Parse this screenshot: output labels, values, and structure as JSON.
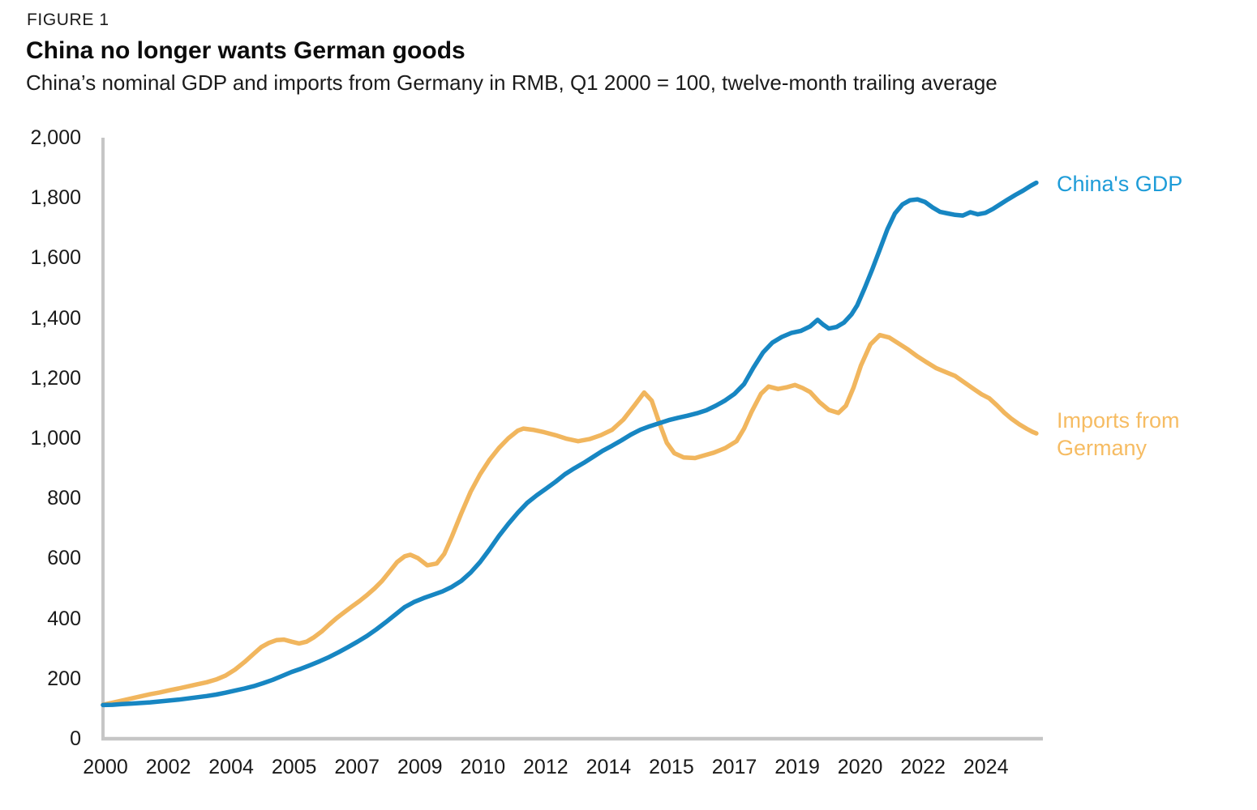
{
  "header": {
    "figure_label": "FIGURE 1",
    "title": "China no longer wants German goods",
    "subtitle": "China’s nominal GDP and imports from Germany in RMB, Q1 2000 = 100, twelve-month trailing average"
  },
  "chart_data": {
    "type": "line",
    "title": "China no longer wants German goods",
    "subtitle": "China’s nominal GDP and imports from Germany in RMB, Q1 2000 = 100, twelve-month trailing average",
    "xlabel": "",
    "ylabel": "",
    "ylim": [
      0,
      2000
    ],
    "grid": false,
    "legend_position": "inline-right",
    "axis_color": "#c6c6c6",
    "tick_text_color": "#1a1a1a",
    "y_axis": {
      "ticks": [
        "0",
        "200",
        "400",
        "600",
        "800",
        "1,000",
        "1,200",
        "1,400",
        "1,600",
        "1,800",
        "2,000"
      ]
    },
    "x_axis": {
      "ticks": [
        "2000",
        "2002",
        "2004",
        "2005",
        "2007",
        "2009",
        "2010",
        "2012",
        "2014",
        "2015",
        "2017",
        "2019",
        "2020",
        "2022",
        "2024"
      ]
    },
    "x_unit": "year",
    "series": [
      {
        "name": "China's GDP",
        "color": "#1786c2",
        "label_color": "#1e9cd8",
        "points": [
          [
            2000.0,
            112
          ],
          [
            2000.25,
            113
          ],
          [
            2000.5,
            115
          ],
          [
            2000.75,
            117
          ],
          [
            2001.0,
            119
          ],
          [
            2001.25,
            121
          ],
          [
            2001.5,
            124
          ],
          [
            2001.75,
            127
          ],
          [
            2002.0,
            130
          ],
          [
            2002.25,
            134
          ],
          [
            2002.5,
            138
          ],
          [
            2002.75,
            142
          ],
          [
            2003.0,
            147
          ],
          [
            2003.25,
            153
          ],
          [
            2003.5,
            160
          ],
          [
            2003.75,
            167
          ],
          [
            2004.0,
            175
          ],
          [
            2004.25,
            185
          ],
          [
            2004.5,
            196
          ],
          [
            2004.75,
            209
          ],
          [
            2005.0,
            222
          ],
          [
            2005.25,
            233
          ],
          [
            2005.5,
            245
          ],
          [
            2005.75,
            258
          ],
          [
            2006.0,
            272
          ],
          [
            2006.25,
            288
          ],
          [
            2006.5,
            305
          ],
          [
            2006.75,
            323
          ],
          [
            2007.0,
            342
          ],
          [
            2007.25,
            364
          ],
          [
            2007.5,
            388
          ],
          [
            2007.75,
            413
          ],
          [
            2008.0,
            438
          ],
          [
            2008.25,
            455
          ],
          [
            2008.5,
            468
          ],
          [
            2008.75,
            479
          ],
          [
            2009.0,
            490
          ],
          [
            2009.25,
            505
          ],
          [
            2009.5,
            525
          ],
          [
            2009.75,
            553
          ],
          [
            2010.0,
            588
          ],
          [
            2010.25,
            630
          ],
          [
            2010.5,
            675
          ],
          [
            2010.75,
            715
          ],
          [
            2011.0,
            752
          ],
          [
            2011.25,
            785
          ],
          [
            2011.5,
            810
          ],
          [
            2011.75,
            832
          ],
          [
            2012.0,
            855
          ],
          [
            2012.25,
            880
          ],
          [
            2012.5,
            900
          ],
          [
            2012.75,
            918
          ],
          [
            2013.0,
            938
          ],
          [
            2013.25,
            958
          ],
          [
            2013.5,
            975
          ],
          [
            2013.75,
            993
          ],
          [
            2014.0,
            1012
          ],
          [
            2014.25,
            1028
          ],
          [
            2014.5,
            1040
          ],
          [
            2014.75,
            1050
          ],
          [
            2015.0,
            1060
          ],
          [
            2015.25,
            1068
          ],
          [
            2015.5,
            1075
          ],
          [
            2015.75,
            1083
          ],
          [
            2016.0,
            1093
          ],
          [
            2016.25,
            1108
          ],
          [
            2016.5,
            1126
          ],
          [
            2016.75,
            1148
          ],
          [
            2017.0,
            1180
          ],
          [
            2017.25,
            1235
          ],
          [
            2017.5,
            1285
          ],
          [
            2017.75,
            1318
          ],
          [
            2018.0,
            1337
          ],
          [
            2018.25,
            1350
          ],
          [
            2018.5,
            1357
          ],
          [
            2018.75,
            1372
          ],
          [
            2018.95,
            1394
          ],
          [
            2019.1,
            1378
          ],
          [
            2019.25,
            1365
          ],
          [
            2019.45,
            1370
          ],
          [
            2019.65,
            1385
          ],
          [
            2019.85,
            1412
          ],
          [
            2020.0,
            1442
          ],
          [
            2020.2,
            1500
          ],
          [
            2020.4,
            1562
          ],
          [
            2020.6,
            1628
          ],
          [
            2020.8,
            1695
          ],
          [
            2021.0,
            1748
          ],
          [
            2021.2,
            1778
          ],
          [
            2021.4,
            1792
          ],
          [
            2021.6,
            1795
          ],
          [
            2021.8,
            1786
          ],
          [
            2022.0,
            1768
          ],
          [
            2022.2,
            1753
          ],
          [
            2022.4,
            1748
          ],
          [
            2022.6,
            1743
          ],
          [
            2022.8,
            1741
          ],
          [
            2023.0,
            1752
          ],
          [
            2023.2,
            1745
          ],
          [
            2023.4,
            1750
          ],
          [
            2023.6,
            1763
          ],
          [
            2023.8,
            1779
          ],
          [
            2024.0,
            1795
          ],
          [
            2024.2,
            1810
          ],
          [
            2024.4,
            1824
          ],
          [
            2024.6,
            1840
          ],
          [
            2024.75,
            1850
          ]
        ]
      },
      {
        "name": "Imports from Germany",
        "color": "#f1b65e",
        "label_color": "#f6bc63",
        "points": [
          [
            2000.0,
            113
          ],
          [
            2000.25,
            120
          ],
          [
            2000.5,
            127
          ],
          [
            2000.75,
            134
          ],
          [
            2001.0,
            141
          ],
          [
            2001.25,
            148
          ],
          [
            2001.5,
            154
          ],
          [
            2001.75,
            161
          ],
          [
            2002.0,
            167
          ],
          [
            2002.25,
            174
          ],
          [
            2002.5,
            181
          ],
          [
            2002.75,
            188
          ],
          [
            2003.0,
            197
          ],
          [
            2003.25,
            210
          ],
          [
            2003.5,
            230
          ],
          [
            2003.75,
            255
          ],
          [
            2004.0,
            283
          ],
          [
            2004.2,
            305
          ],
          [
            2004.4,
            319
          ],
          [
            2004.6,
            328
          ],
          [
            2004.8,
            330
          ],
          [
            2005.0,
            323
          ],
          [
            2005.2,
            317
          ],
          [
            2005.4,
            323
          ],
          [
            2005.6,
            338
          ],
          [
            2005.8,
            357
          ],
          [
            2006.0,
            380
          ],
          [
            2006.2,
            402
          ],
          [
            2006.4,
            421
          ],
          [
            2006.6,
            440
          ],
          [
            2006.8,
            458
          ],
          [
            2007.0,
            478
          ],
          [
            2007.2,
            500
          ],
          [
            2007.4,
            525
          ],
          [
            2007.6,
            556
          ],
          [
            2007.8,
            588
          ],
          [
            2008.0,
            607
          ],
          [
            2008.15,
            612
          ],
          [
            2008.35,
            601
          ],
          [
            2008.6,
            577
          ],
          [
            2008.85,
            583
          ],
          [
            2009.05,
            615
          ],
          [
            2009.25,
            672
          ],
          [
            2009.5,
            750
          ],
          [
            2009.75,
            822
          ],
          [
            2010.0,
            880
          ],
          [
            2010.25,
            928
          ],
          [
            2010.5,
            968
          ],
          [
            2010.75,
            1000
          ],
          [
            2011.0,
            1025
          ],
          [
            2011.15,
            1032
          ],
          [
            2011.4,
            1028
          ],
          [
            2011.7,
            1020
          ],
          [
            2012.0,
            1010
          ],
          [
            2012.3,
            998
          ],
          [
            2012.6,
            990
          ],
          [
            2012.9,
            997
          ],
          [
            2013.2,
            1010
          ],
          [
            2013.5,
            1028
          ],
          [
            2013.8,
            1062
          ],
          [
            2014.1,
            1110
          ],
          [
            2014.35,
            1152
          ],
          [
            2014.55,
            1125
          ],
          [
            2014.75,
            1052
          ],
          [
            2014.95,
            985
          ],
          [
            2015.15,
            950
          ],
          [
            2015.4,
            936
          ],
          [
            2015.7,
            934
          ],
          [
            2015.95,
            943
          ],
          [
            2016.2,
            952
          ],
          [
            2016.5,
            967
          ],
          [
            2016.8,
            990
          ],
          [
            2017.0,
            1032
          ],
          [
            2017.2,
            1088
          ],
          [
            2017.45,
            1148
          ],
          [
            2017.65,
            1172
          ],
          [
            2017.9,
            1164
          ],
          [
            2018.15,
            1170
          ],
          [
            2018.35,
            1177
          ],
          [
            2018.55,
            1167
          ],
          [
            2018.75,
            1154
          ],
          [
            2019.0,
            1120
          ],
          [
            2019.25,
            1094
          ],
          [
            2019.5,
            1084
          ],
          [
            2019.7,
            1108
          ],
          [
            2019.9,
            1168
          ],
          [
            2020.1,
            1242
          ],
          [
            2020.35,
            1312
          ],
          [
            2020.6,
            1343
          ],
          [
            2020.85,
            1335
          ],
          [
            2021.1,
            1315
          ],
          [
            2021.35,
            1295
          ],
          [
            2021.6,
            1272
          ],
          [
            2021.85,
            1252
          ],
          [
            2022.1,
            1233
          ],
          [
            2022.35,
            1220
          ],
          [
            2022.6,
            1207
          ],
          [
            2022.85,
            1185
          ],
          [
            2023.1,
            1163
          ],
          [
            2023.3,
            1146
          ],
          [
            2023.5,
            1133
          ],
          [
            2023.7,
            1110
          ],
          [
            2023.9,
            1085
          ],
          [
            2024.1,
            1064
          ],
          [
            2024.3,
            1046
          ],
          [
            2024.5,
            1031
          ],
          [
            2024.65,
            1021
          ],
          [
            2024.75,
            1016
          ]
        ]
      }
    ]
  }
}
